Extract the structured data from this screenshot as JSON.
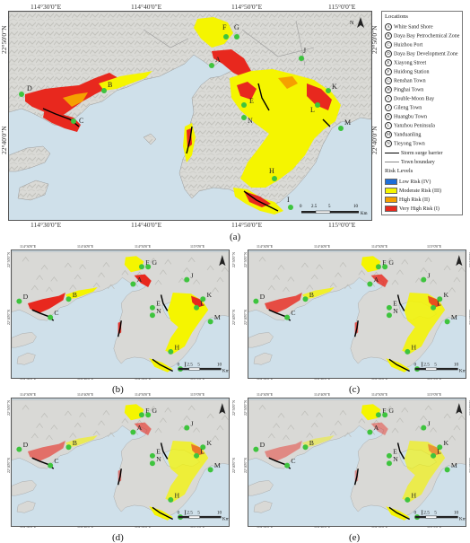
{
  "panel_a": {
    "label": "(a)",
    "lon_labels": [
      "114°30'0\"E",
      "114°40'0\"E",
      "114°50'0\"E",
      "115°0'0\"E"
    ],
    "lat_labels": [
      "22°50'0\"N",
      "22°40'0\"N"
    ],
    "site_labels": [
      "A",
      "B",
      "C",
      "D",
      "E",
      "F",
      "G",
      "H",
      "I",
      "J",
      "K",
      "L",
      "M",
      "N"
    ],
    "north_label": "N",
    "scale_ticks": [
      "0",
      "2.5",
      "5",
      "10"
    ],
    "scale_unit": "Km"
  },
  "small_panels": [
    {
      "label": "(b)"
    },
    {
      "label": "(c)"
    },
    {
      "label": "(d)"
    },
    {
      "label": "(e)"
    }
  ],
  "small_lon_labels": [
    "114°30'0\"E",
    "114°40'0\"E",
    "114°50'0\"E",
    "115°0'0\"E"
  ],
  "small_lat_labels": [
    "22°50'0\"N",
    "22°40'0\"N"
  ],
  "small_scale_ticks": [
    "0",
    "2.5",
    "5",
    "10"
  ],
  "small_scale_unit": "Km",
  "legend": {
    "title": "Locations",
    "locations": [
      {
        "letter": "A",
        "name": "White Sand Shore"
      },
      {
        "letter": "B",
        "name": "Daya Bay Petrochemical Zone"
      },
      {
        "letter": "C",
        "name": "Huizhou Port"
      },
      {
        "letter": "D",
        "name": "Daya Bay Development Zone"
      },
      {
        "letter": "E",
        "name": "Xiayong Street"
      },
      {
        "letter": "F",
        "name": "Huidong Station"
      },
      {
        "letter": "G",
        "name": "Renshan Town"
      },
      {
        "letter": "H",
        "name": "Pinghai Town"
      },
      {
        "letter": "I",
        "name": "Double-Moon Bay"
      },
      {
        "letter": "J",
        "name": "Gileng Town"
      },
      {
        "letter": "K",
        "name": "Huangbu Town"
      },
      {
        "letter": "L",
        "name": "Yanzhou Peninsula"
      },
      {
        "letter": "M",
        "name": "Yanduanling"
      },
      {
        "letter": "N",
        "name": "Tieyong Town"
      }
    ],
    "lines": [
      {
        "label": "Storm surge barrier",
        "color": "#000000"
      },
      {
        "label": "Town boundary",
        "color": "#888888"
      }
    ],
    "risk_title": "Risk Levels",
    "risk_levels": [
      {
        "label": "Low Risk (IV)",
        "color": "#1e6fd9"
      },
      {
        "label": "Moderate Risk (III)",
        "color": "#f5f500"
      },
      {
        "label": "High Risk (II)",
        "color": "#f5a000"
      },
      {
        "label": "Very High Risk (I)",
        "color": "#e8281e"
      }
    ]
  },
  "colors": {
    "sea": "#cfe0ea",
    "land": "#d9d9d6",
    "relief": "#bdbdb8",
    "site": "#3ec43e",
    "very_high": "#e8281e",
    "high": "#f5a000",
    "moderate": "#f5f500"
  }
}
